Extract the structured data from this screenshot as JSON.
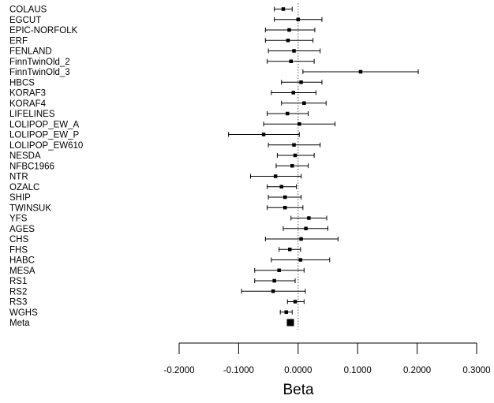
{
  "chart_data": {
    "type": "forest",
    "title": "",
    "xlabel": "Beta",
    "ylabel": "",
    "xlim": [
      -0.2,
      0.3
    ],
    "x_ticks": [
      -0.2,
      -0.1,
      0.0,
      0.1,
      0.2,
      0.3
    ],
    "x_tick_labels": [
      "-0.2000",
      "-0.1000",
      "0.0000",
      "0.1000",
      "0.2000",
      "0.3000"
    ],
    "reference_line": 0.0,
    "grid": false,
    "legend": "none",
    "studies": [
      {
        "label": "COLAUS",
        "beta": -0.025,
        "lower": -0.04,
        "upper": -0.01
      },
      {
        "label": "EGCUT",
        "beta": 0.0,
        "lower": -0.04,
        "upper": 0.04
      },
      {
        "label": "EPIC-NORFOLK",
        "beta": -0.015,
        "lower": -0.055,
        "upper": 0.028
      },
      {
        "label": "ERF",
        "beta": -0.017,
        "lower": -0.055,
        "upper": 0.025
      },
      {
        "label": "FENLAND",
        "beta": -0.007,
        "lower": -0.05,
        "upper": 0.037
      },
      {
        "label": "FinnTwinOld_2",
        "beta": -0.012,
        "lower": -0.052,
        "upper": 0.027
      },
      {
        "label": "FinnTwinOld_3",
        "beta": 0.105,
        "lower": 0.008,
        "upper": 0.202
      },
      {
        "label": "HBCS",
        "beta": 0.005,
        "lower": -0.028,
        "upper": 0.04
      },
      {
        "label": "KORAF3",
        "beta": -0.008,
        "lower": -0.045,
        "upper": 0.03
      },
      {
        "label": "KORAF4",
        "beta": 0.01,
        "lower": -0.028,
        "upper": 0.047
      },
      {
        "label": "LIFELINES",
        "beta": -0.018,
        "lower": -0.052,
        "upper": 0.017
      },
      {
        "label": "LOLIPOP_EW_A",
        "beta": 0.002,
        "lower": -0.058,
        "upper": 0.062
      },
      {
        "label": "LOLIPOP_EW_P",
        "beta": -0.058,
        "lower": -0.117,
        "upper": 0.002
      },
      {
        "label": "LOLIPOP_EW610",
        "beta": -0.007,
        "lower": -0.05,
        "upper": 0.037
      },
      {
        "label": "NESDA",
        "beta": -0.005,
        "lower": -0.035,
        "upper": 0.027
      },
      {
        "label": "NFBC1966",
        "beta": -0.01,
        "lower": -0.037,
        "upper": 0.017
      },
      {
        "label": "NTR",
        "beta": -0.038,
        "lower": -0.08,
        "upper": 0.005
      },
      {
        "label": "OZALC",
        "beta": -0.028,
        "lower": -0.052,
        "upper": -0.003
      },
      {
        "label": "SHIP",
        "beta": -0.022,
        "lower": -0.05,
        "upper": 0.005
      },
      {
        "label": "TWINSUK",
        "beta": -0.022,
        "lower": -0.052,
        "upper": 0.008
      },
      {
        "label": "YFS",
        "beta": 0.018,
        "lower": -0.012,
        "upper": 0.048
      },
      {
        "label": "AGES",
        "beta": 0.013,
        "lower": -0.025,
        "upper": 0.05
      },
      {
        "label": "CHS",
        "beta": 0.005,
        "lower": -0.055,
        "upper": 0.067
      },
      {
        "label": "FHS",
        "beta": -0.014,
        "lower": -0.032,
        "upper": 0.004
      },
      {
        "label": "HABC",
        "beta": 0.004,
        "lower": -0.045,
        "upper": 0.053
      },
      {
        "label": "MESA",
        "beta": -0.032,
        "lower": -0.073,
        "upper": 0.01
      },
      {
        "label": "RS1",
        "beta": -0.04,
        "lower": -0.073,
        "upper": -0.005
      },
      {
        "label": "RS2",
        "beta": -0.042,
        "lower": -0.095,
        "upper": 0.012
      },
      {
        "label": "RS3",
        "beta": -0.005,
        "lower": -0.018,
        "upper": 0.01
      },
      {
        "label": "WGHS",
        "beta": -0.02,
        "lower": -0.03,
        "upper": -0.01
      },
      {
        "label": "Meta",
        "beta": -0.013,
        "lower": -0.018,
        "upper": -0.008
      }
    ]
  }
}
